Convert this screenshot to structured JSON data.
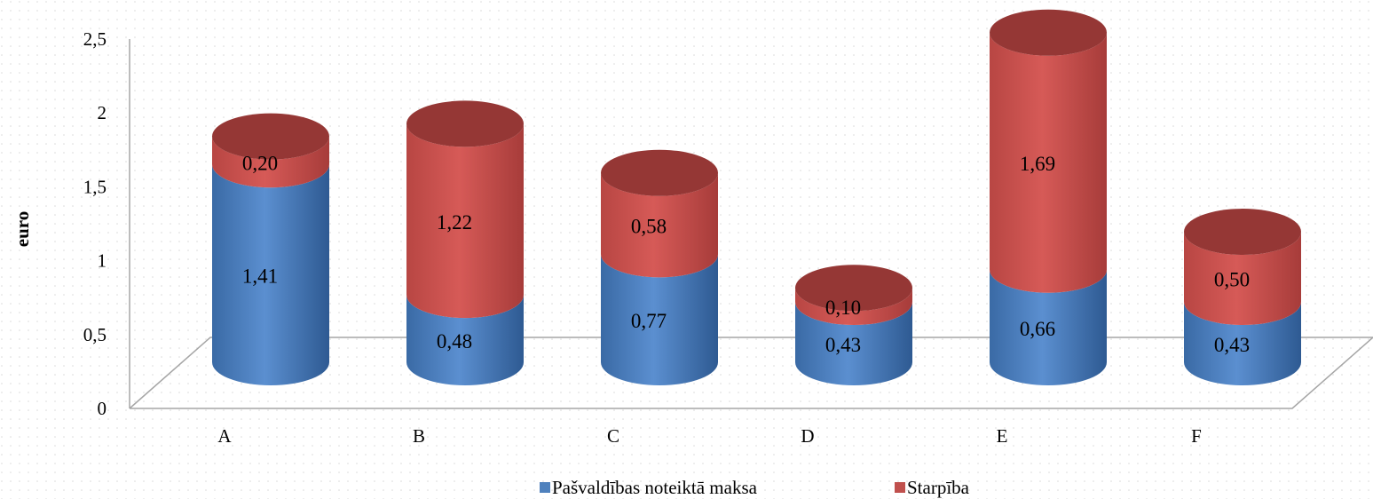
{
  "chart_data": {
    "type": "bar",
    "stacked": true,
    "style": "3d-cylinder",
    "title": "",
    "xlabel": "",
    "ylabel": "euro",
    "ylim": [
      0,
      2.5
    ],
    "yticks": [
      "0",
      "0,5",
      "1",
      "1,5",
      "2",
      "2,5"
    ],
    "ytick_values": [
      0,
      0.5,
      1,
      1.5,
      2,
      2.5
    ],
    "categories": [
      "A",
      "B",
      "C",
      "D",
      "E",
      "F"
    ],
    "series": [
      {
        "name": "Pašvaldības noteiktā maksa",
        "color": "#4f81bd",
        "values": [
          1.41,
          0.48,
          0.77,
          0.43,
          0.66,
          0.43
        ],
        "labels": [
          "1,41",
          "0,48",
          "0,77",
          "0,43",
          "0,66",
          "0,43"
        ]
      },
      {
        "name": "Starpība",
        "color": "#c0504d",
        "values": [
          0.2,
          1.22,
          0.58,
          0.1,
          1.69,
          0.5
        ],
        "labels": [
          "0,20",
          "1,22",
          "0,58",
          "0,10",
          "1,69",
          "0,50"
        ]
      }
    ],
    "legend_position": "bottom",
    "grid": false
  }
}
